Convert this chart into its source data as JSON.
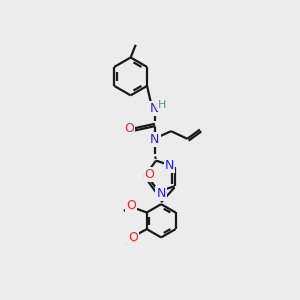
{
  "bg_color": "#ececec",
  "bond_color": "#1a1a1a",
  "N_color": "#2020ff",
  "O_color": "#ff2020",
  "H_color": "#4a9090",
  "line_width": 1.6,
  "fig_size": [
    3.0,
    3.0
  ],
  "dpi": 100,
  "xlim": [
    0,
    10
  ],
  "ylim": [
    0,
    10
  ]
}
